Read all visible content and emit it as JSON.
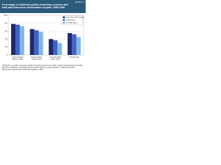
{
  "header": {
    "exhibit": "Exhibit 27",
    "title": "Percentage of California public elementary schools with lead paint and some deterioration of paint, 1998-1999"
  },
  "chart_data": {
    "type": "bar",
    "categories": [
      "Schools Built Before 1950",
      "Schools Built 1950-1979",
      "Schools Built After 1979",
      "All Schools"
    ],
    "series": [
      {
        "name": "Any (non-zero) paint",
        "color": "#1f2a6b",
        "values": [
          78,
          65,
          40,
          55
        ]
      },
      {
        "name": "≥ 300 ppm",
        "color": "#3f63c4",
        "values": [
          76,
          62,
          37,
          52
        ]
      },
      {
        "name": "≥ 5,000 ppm",
        "color": "#7fb8e6",
        "values": [
          72,
          58,
          30,
          45
        ]
      }
    ],
    "ylim": [
      0,
      100
    ],
    "yticks": [
      0,
      20,
      40,
      60,
      80,
      100
    ],
    "grid": true,
    "legend": "top-right"
  },
  "source": "SOURCE: U.S. EPA, America's Children and the Environment. DATA: California Department of Health Services, Childhood Lead Poisoning Prevention Branch, Lead Hazards in California's Public Elementary Schools and Child Care Facilities, 1998."
}
